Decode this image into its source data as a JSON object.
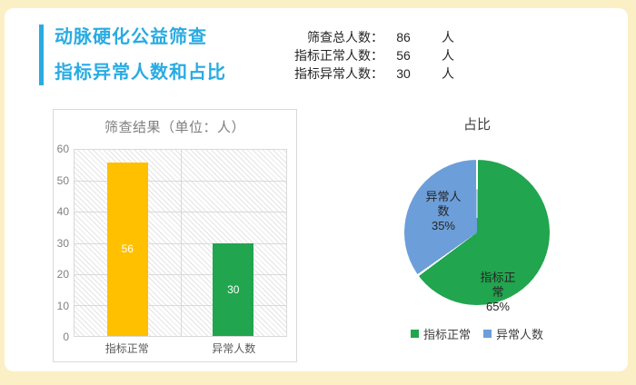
{
  "window": {
    "background_color": "#FBF0C5",
    "card_color": "#FFFFFF"
  },
  "header": {
    "accent_color": "#29ABE2",
    "title_line1": "动脉硬化公益筛查",
    "title_line2": "指标异常人数和占比"
  },
  "stats": {
    "text_color": "#262626",
    "rows": [
      {
        "label": "筛查总人数：",
        "value": "86",
        "unit": "人"
      },
      {
        "label": "指标正常人数：",
        "value": "56",
        "unit": "人"
      },
      {
        "label": "指标异常人数：",
        "value": "30",
        "unit": "人"
      }
    ]
  },
  "chart_data": [
    {
      "type": "bar",
      "title": "筛查结果（单位：人）",
      "title_color": "#7F7F7F",
      "categories": [
        "指标正常",
        "异常人数"
      ],
      "values": [
        56,
        30
      ],
      "data_labels": [
        "56",
        "30"
      ],
      "bar_colors": [
        "#FFC000",
        "#21A54E"
      ],
      "ylim": [
        0,
        60
      ],
      "yticks": [
        0,
        10,
        20,
        30,
        40,
        50,
        60
      ],
      "grid": true,
      "plot_pattern": "light-diagonal-hatch",
      "axis_text_color": "#808080"
    },
    {
      "type": "pie",
      "title": "占比",
      "title_color": "#404040",
      "start_angle_deg": 0,
      "direction": "clockwise",
      "slices": [
        {
          "label": "指标正常",
          "pct": 65,
          "color": "#21A54E",
          "inside_label": "指标正\n常\n65%"
        },
        {
          "label": "异常人数",
          "pct": 35,
          "color": "#6C9ED9",
          "inside_label": "异常人\n数\n35%"
        }
      ],
      "legend_position": "bottom"
    }
  ]
}
